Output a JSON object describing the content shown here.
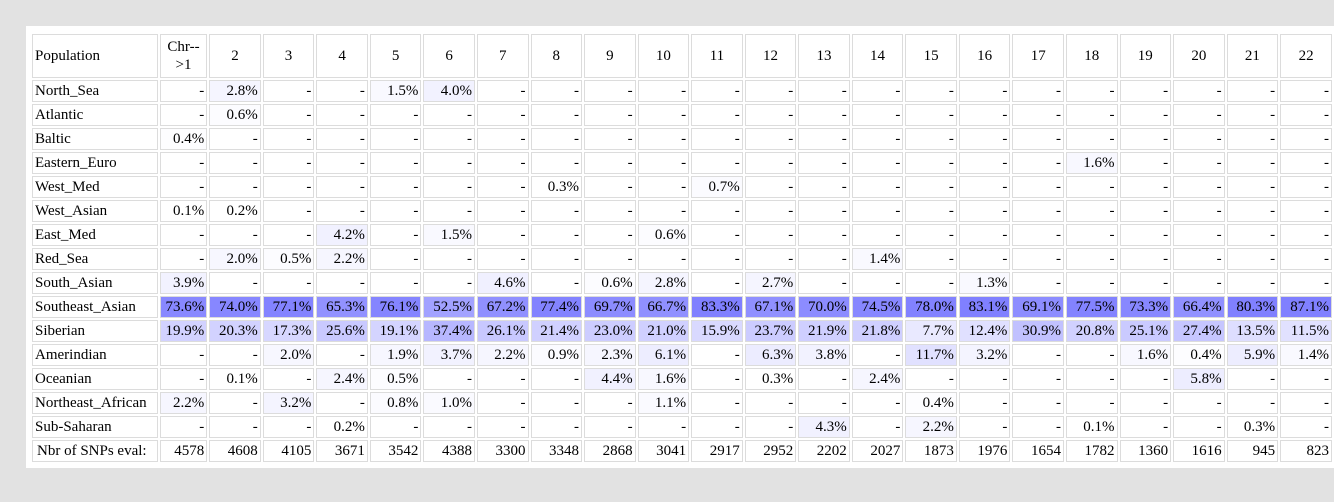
{
  "table": {
    "header_label": "Population",
    "columns": [
      "Chr-->1",
      "2",
      "3",
      "4",
      "5",
      "6",
      "7",
      "8",
      "9",
      "10",
      "11",
      "12",
      "13",
      "14",
      "15",
      "16",
      "17",
      "18",
      "19",
      "20",
      "21",
      "22"
    ],
    "rows": [
      {
        "name": "North_Sea",
        "values": [
          "-",
          "2.8%",
          "-",
          "-",
          "1.5%",
          "4.0%",
          "-",
          "-",
          "-",
          "-",
          "-",
          "-",
          "-",
          "-",
          "-",
          "-",
          "-",
          "-",
          "-",
          "-",
          "-",
          "-"
        ]
      },
      {
        "name": "Atlantic",
        "values": [
          "-",
          "0.6%",
          "-",
          "-",
          "-",
          "-",
          "-",
          "-",
          "-",
          "-",
          "-",
          "-",
          "-",
          "-",
          "-",
          "-",
          "-",
          "-",
          "-",
          "-",
          "-",
          "-"
        ]
      },
      {
        "name": "Baltic",
        "values": [
          "0.4%",
          "-",
          "-",
          "-",
          "-",
          "-",
          "-",
          "-",
          "-",
          "-",
          "-",
          "-",
          "-",
          "-",
          "-",
          "-",
          "-",
          "-",
          "-",
          "-",
          "-",
          "-"
        ]
      },
      {
        "name": "Eastern_Euro",
        "values": [
          "-",
          "-",
          "-",
          "-",
          "-",
          "-",
          "-",
          "-",
          "-",
          "-",
          "-",
          "-",
          "-",
          "-",
          "-",
          "-",
          "-",
          "1.6%",
          "-",
          "-",
          "-",
          "-"
        ]
      },
      {
        "name": "West_Med",
        "values": [
          "-",
          "-",
          "-",
          "-",
          "-",
          "-",
          "-",
          "0.3%",
          "-",
          "-",
          "0.7%",
          "-",
          "-",
          "-",
          "-",
          "-",
          "-",
          "-",
          "-",
          "-",
          "-",
          "-"
        ]
      },
      {
        "name": "West_Asian",
        "values": [
          "0.1%",
          "0.2%",
          "-",
          "-",
          "-",
          "-",
          "-",
          "-",
          "-",
          "-",
          "-",
          "-",
          "-",
          "-",
          "-",
          "-",
          "-",
          "-",
          "-",
          "-",
          "-",
          "-"
        ]
      },
      {
        "name": "East_Med",
        "values": [
          "-",
          "-",
          "-",
          "4.2%",
          "-",
          "1.5%",
          "-",
          "-",
          "-",
          "0.6%",
          "-",
          "-",
          "-",
          "-",
          "-",
          "-",
          "-",
          "-",
          "-",
          "-",
          "-",
          "-"
        ]
      },
      {
        "name": "Red_Sea",
        "values": [
          "-",
          "2.0%",
          "0.5%",
          "2.2%",
          "-",
          "-",
          "-",
          "-",
          "-",
          "-",
          "-",
          "-",
          "-",
          "1.4%",
          "-",
          "-",
          "-",
          "-",
          "-",
          "-",
          "-",
          "-"
        ]
      },
      {
        "name": "South_Asian",
        "values": [
          "3.9%",
          "-",
          "-",
          "-",
          "-",
          "-",
          "4.6%",
          "-",
          "0.6%",
          "2.8%",
          "-",
          "2.7%",
          "-",
          "-",
          "-",
          "1.3%",
          "-",
          "-",
          "-",
          "-",
          "-",
          "-"
        ]
      },
      {
        "name": "Southeast_Asian",
        "values": [
          "73.6%",
          "74.0%",
          "77.1%",
          "65.3%",
          "76.1%",
          "52.5%",
          "67.2%",
          "77.4%",
          "69.7%",
          "66.7%",
          "83.3%",
          "67.1%",
          "70.0%",
          "74.5%",
          "78.0%",
          "83.1%",
          "69.1%",
          "77.5%",
          "73.3%",
          "66.4%",
          "80.3%",
          "87.1%"
        ]
      },
      {
        "name": "Siberian",
        "values": [
          "19.9%",
          "20.3%",
          "17.3%",
          "25.6%",
          "19.1%",
          "37.4%",
          "26.1%",
          "21.4%",
          "23.0%",
          "21.0%",
          "15.9%",
          "23.7%",
          "21.9%",
          "21.8%",
          "7.7%",
          "12.4%",
          "30.9%",
          "20.8%",
          "25.1%",
          "27.4%",
          "13.5%",
          "11.5%"
        ]
      },
      {
        "name": "Amerindian",
        "values": [
          "-",
          "-",
          "2.0%",
          "-",
          "1.9%",
          "3.7%",
          "2.2%",
          "0.9%",
          "2.3%",
          "6.1%",
          "-",
          "6.3%",
          "3.8%",
          "-",
          "11.7%",
          "3.2%",
          "-",
          "-",
          "1.6%",
          "0.4%",
          "5.9%",
          "1.4%"
        ]
      },
      {
        "name": "Oceanian",
        "values": [
          "-",
          "0.1%",
          "-",
          "2.4%",
          "0.5%",
          "-",
          "-",
          "-",
          "4.4%",
          "1.6%",
          "-",
          "0.3%",
          "-",
          "2.4%",
          "-",
          "-",
          "-",
          "-",
          "-",
          "5.8%",
          "-",
          "-"
        ]
      },
      {
        "name": "Northeast_African",
        "values": [
          "2.2%",
          "-",
          "3.2%",
          "-",
          "0.8%",
          "1.0%",
          "-",
          "-",
          "-",
          "1.1%",
          "-",
          "-",
          "-",
          "-",
          "0.4%",
          "-",
          "-",
          "-",
          "-",
          "-",
          "-",
          "-"
        ]
      },
      {
        "name": "Sub-Saharan",
        "values": [
          "-",
          "-",
          "-",
          "0.2%",
          "-",
          "-",
          "-",
          "-",
          "-",
          "-",
          "-",
          "-",
          "4.3%",
          "-",
          "2.2%",
          "-",
          "-",
          "0.1%",
          "-",
          "-",
          "0.3%",
          "-"
        ]
      }
    ],
    "total_row": {
      "name": "Nbr of SNPs eval:",
      "values": [
        "4578",
        "4608",
        "4105",
        "3671",
        "3542",
        "4388",
        "3300",
        "3348",
        "2868",
        "3041",
        "2917",
        "2952",
        "2202",
        "2027",
        "1873",
        "1976",
        "1654",
        "1782",
        "1360",
        "1616",
        "945",
        "823"
      ]
    }
  }
}
